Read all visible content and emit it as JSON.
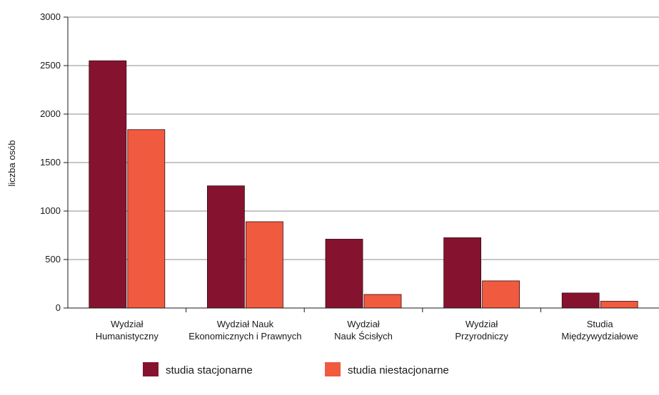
{
  "chart_data": {
    "type": "bar",
    "title": "",
    "xlabel": "",
    "ylabel": "liczba osób",
    "ylim": [
      0,
      3000
    ],
    "yticks": [
      0,
      500,
      1000,
      1500,
      2000,
      2500,
      3000
    ],
    "grid": true,
    "legend_position": "bottom",
    "categories": [
      [
        "Wydział",
        "Humanistyczny"
      ],
      [
        "Wydział Nauk",
        "Ekonomicznych i Prawnych"
      ],
      [
        "Wydział",
        "Nauk Ścisłych"
      ],
      [
        "Wydział",
        "Przyrodniczy"
      ],
      [
        "Studia",
        "Międzywydziałowe"
      ]
    ],
    "series": [
      {
        "name": "studia stacjonarne",
        "color": "#85132f",
        "values": [
          2550,
          1260,
          710,
          725,
          155
        ]
      },
      {
        "name": "studia niestacjonarne",
        "color": "#f05a3f",
        "values": [
          1840,
          890,
          140,
          280,
          70
        ]
      }
    ]
  }
}
